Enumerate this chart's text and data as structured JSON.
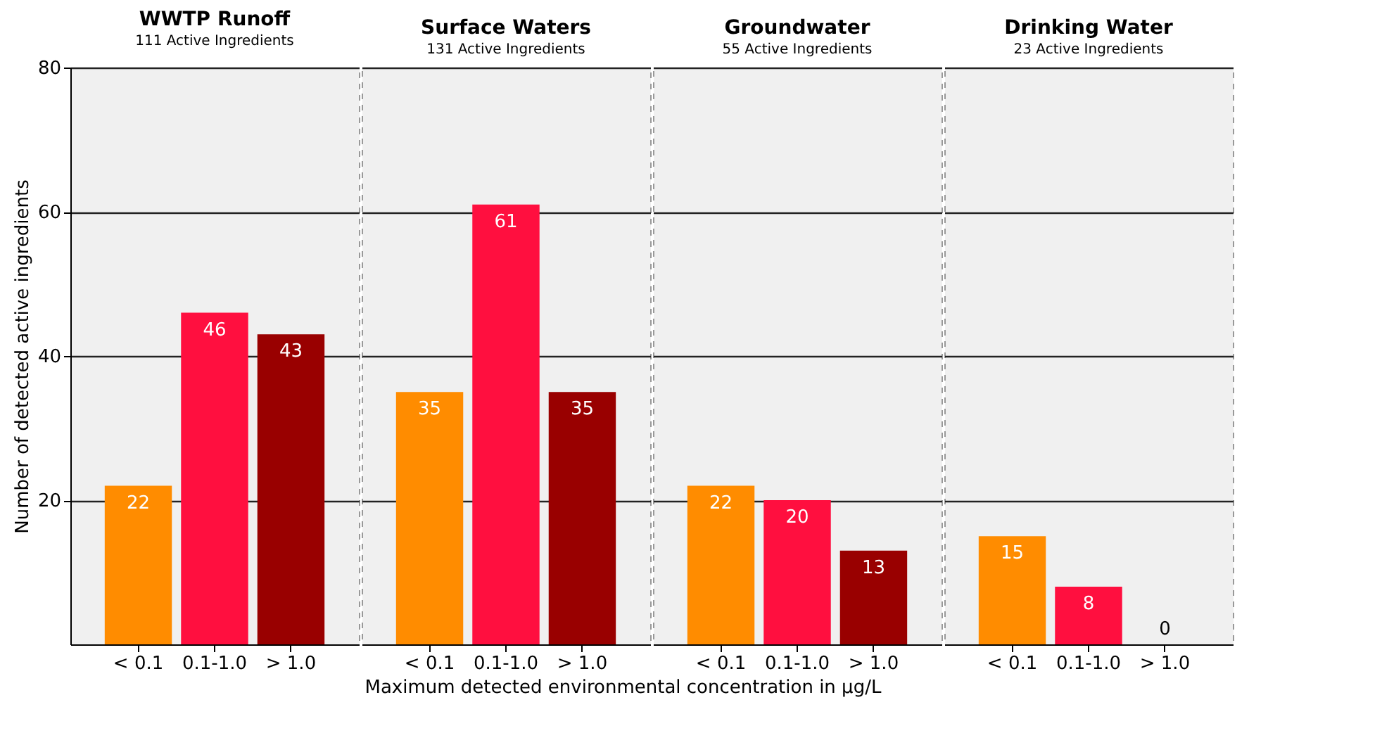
{
  "chart_data": [
    {
      "type": "bar",
      "title": "WWTP Runoff",
      "subtitle": "111 Active Ingredients",
      "ylabel": "Number of detected active ingredients",
      "xlabel": "Maximum detected environmental concentration in µg/L",
      "categories": [
        "< 0.1",
        "0.1-1.0",
        "> 1.0"
      ],
      "values": [
        22,
        46,
        43
      ],
      "colors": [
        "#ff8c00",
        "#ff0f3f",
        "#990000"
      ],
      "ylim": [
        0,
        80
      ],
      "yticks": [
        20,
        40,
        60,
        80
      ],
      "grid": "y",
      "data_labels": true
    },
    {
      "type": "bar",
      "title": "Surface Waters",
      "subtitle": "131 Active Ingredients",
      "categories": [
        "< 0.1",
        "0.1-1.0",
        "> 1.0"
      ],
      "values": [
        35,
        61,
        35
      ],
      "colors": [
        "#ff8c00",
        "#ff0f3f",
        "#990000"
      ],
      "ylim": [
        0,
        80
      ],
      "yticks": [
        20,
        40,
        60,
        80
      ],
      "grid": "y",
      "data_labels": true,
      "tick_labels": "x"
    },
    {
      "type": "bar",
      "title": "Groundwater",
      "subtitle": "55 Active Ingredients",
      "categories": [
        "< 0.1",
        "0.1-1.0",
        "> 1.0"
      ],
      "values": [
        22,
        20,
        13
      ],
      "colors": [
        "#ff8c00",
        "#ff0f3f",
        "#990000"
      ],
      "ylim": [
        0,
        80
      ],
      "yticks": [
        20,
        40,
        60,
        80
      ],
      "grid": "y",
      "data_labels": true,
      "tick_labels": "x"
    },
    {
      "type": "bar",
      "title": "Drinking Water",
      "subtitle": "23 Active Ingredients",
      "categories": [
        "< 0.1",
        "0.1-1.0",
        "> 1.0"
      ],
      "values": [
        15,
        8,
        0
      ],
      "colors": [
        "#ff8c00",
        "#ff0f3f",
        "#990000"
      ],
      "ylim": [
        0,
        80
      ],
      "yticks": [
        20,
        40,
        60,
        80
      ],
      "grid": "y",
      "data_labels": true,
      "tick_labels": "x"
    }
  ]
}
